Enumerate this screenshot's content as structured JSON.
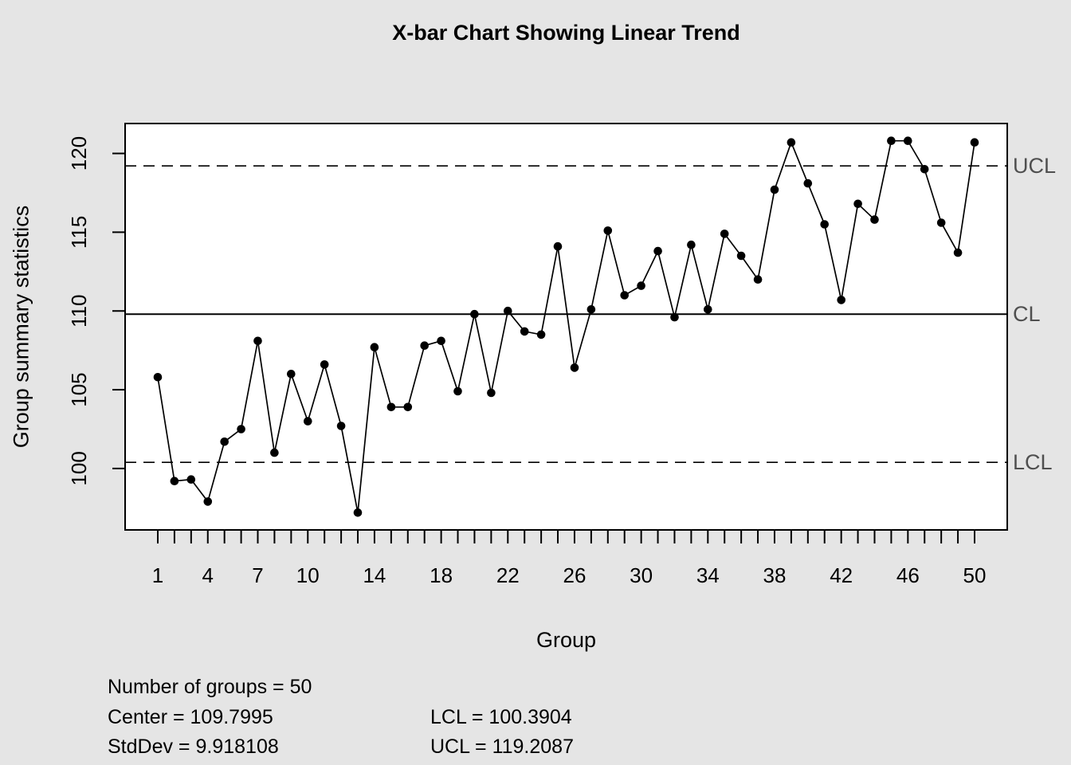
{
  "chart": {
    "title": "X-bar Chart Showing Linear Trend",
    "xlabel": "Group",
    "ylabel": "Group summary statistics"
  },
  "stats": {
    "number_of_groups": "Number of groups = 50",
    "center": "Center = 109.7995",
    "stddev": "StdDev = 9.918108",
    "lcl": "LCL = 100.3904",
    "ucl": "UCL = 119.2087"
  },
  "chart_data": {
    "type": "line",
    "title": "X-bar Chart Showing Linear Trend",
    "xlabel": "Group",
    "ylabel": "Group summary statistics",
    "x": [
      1,
      2,
      3,
      4,
      5,
      6,
      7,
      8,
      9,
      10,
      11,
      12,
      13,
      14,
      15,
      16,
      17,
      18,
      19,
      20,
      21,
      22,
      23,
      24,
      25,
      26,
      27,
      28,
      29,
      30,
      31,
      32,
      33,
      34,
      35,
      36,
      37,
      38,
      39,
      40,
      41,
      42,
      43,
      44,
      45,
      46,
      47,
      48,
      49,
      50
    ],
    "values": [
      105.8,
      99.2,
      99.3,
      97.9,
      101.7,
      102.5,
      108.1,
      101.0,
      106.0,
      103.0,
      106.6,
      102.7,
      97.2,
      107.7,
      103.9,
      103.9,
      107.8,
      108.1,
      104.9,
      109.8,
      104.8,
      110.0,
      108.7,
      108.5,
      114.1,
      106.4,
      110.1,
      115.1,
      111.0,
      111.6,
      113.8,
      109.6,
      114.2,
      110.1,
      114.9,
      113.5,
      112.0,
      117.7,
      120.7,
      118.1,
      115.5,
      110.7,
      116.8,
      115.8,
      120.8,
      120.8,
      119.0,
      115.6,
      113.7,
      120.7
    ],
    "center": 109.7995,
    "ucl": 119.2087,
    "lcl": 100.3904,
    "stddev": 9.918108,
    "number_of_groups": 50,
    "line_labels": {
      "ucl": "UCL",
      "cl": "CL",
      "lcl": "LCL"
    },
    "y_ticks": [
      100,
      105,
      110,
      115,
      120
    ],
    "x_tick_labels": [
      1,
      4,
      7,
      10,
      14,
      18,
      22,
      26,
      30,
      34,
      38,
      42,
      46,
      50
    ],
    "xlim": [
      -0.96,
      51.96
    ],
    "ylim": [
      96.1,
      121.9
    ],
    "grid": false,
    "legend_position": "none",
    "point_color": "#000000",
    "line_color": "#000000",
    "control_label_color": "#4f4f4f",
    "plot_bg_color": "#ffffff",
    "outer_bg_color": "#e5e5e5"
  }
}
